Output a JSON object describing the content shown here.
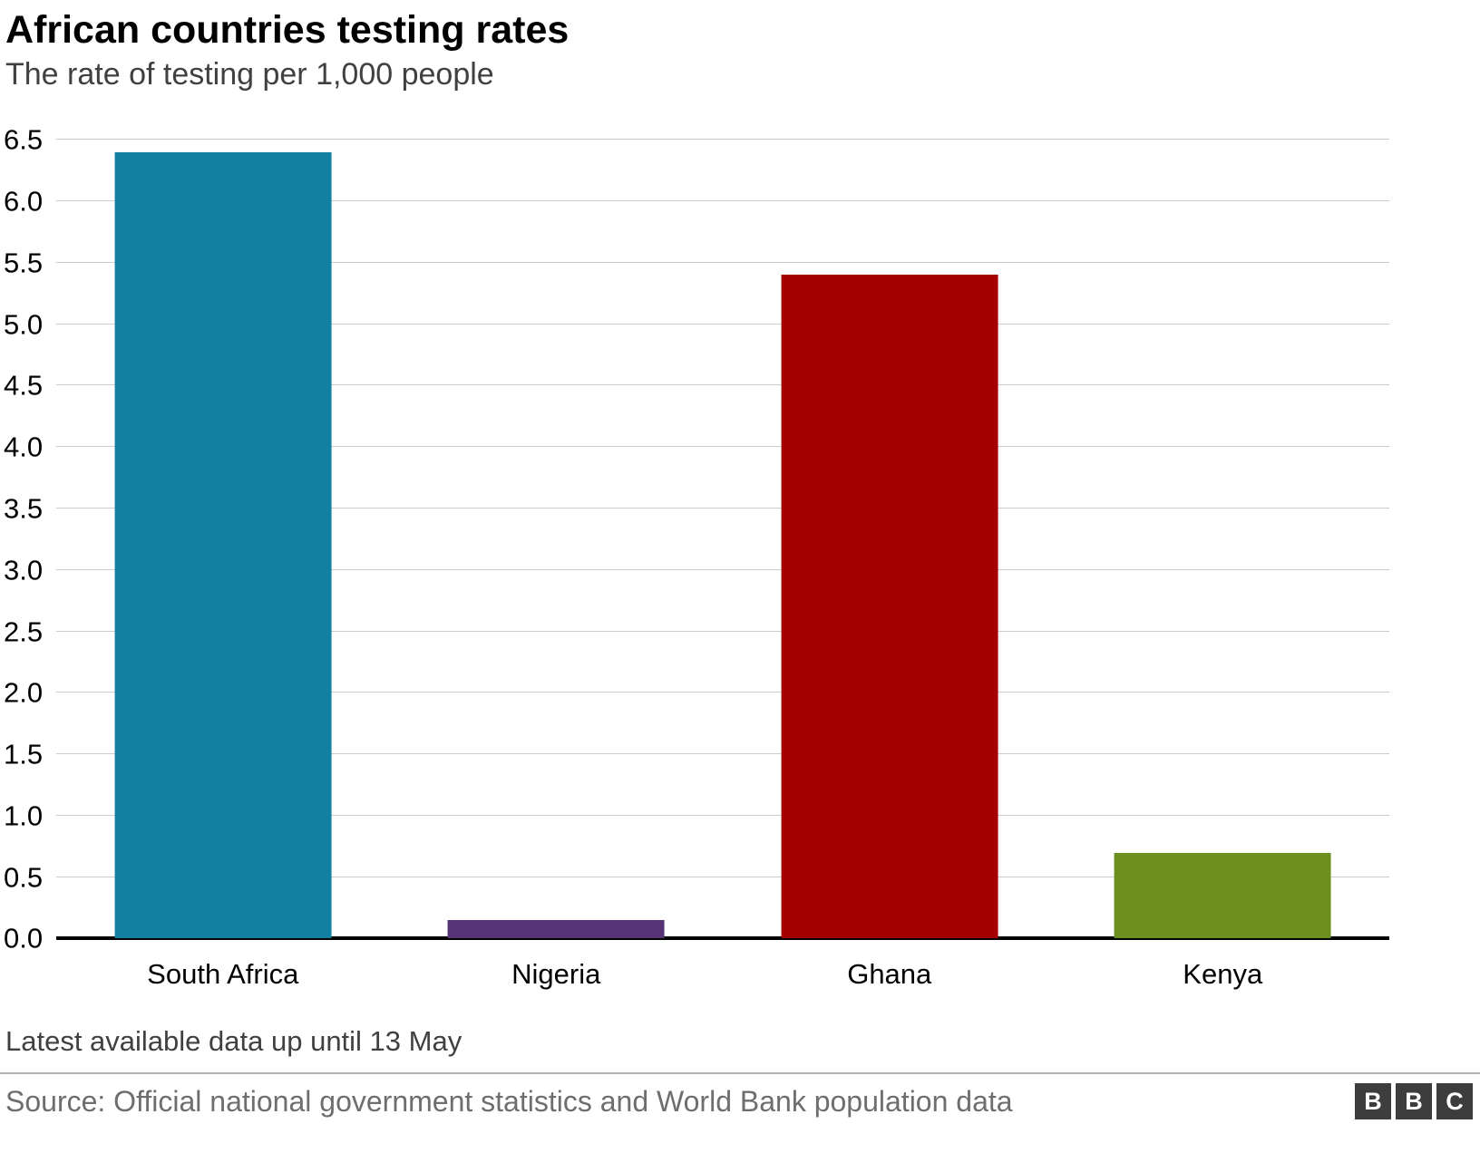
{
  "header": {
    "title": "African countries testing rates",
    "subtitle": "The rate of testing per 1,000 people"
  },
  "footnote": "Latest available data up until 13 May",
  "source": "Source: Official national government statistics and World Bank population data",
  "logo": {
    "letters": [
      "B",
      "B",
      "C"
    ]
  },
  "chart_data": {
    "type": "bar",
    "title": "African countries testing rates",
    "subtitle": "The rate of testing per 1,000 people",
    "categories": [
      "South Africa",
      "Nigeria",
      "Ghana",
      "Kenya"
    ],
    "values": [
      6.4,
      0.15,
      5.4,
      0.7
    ],
    "colors": [
      "#1380A1",
      "#563277",
      "#A40000",
      "#6E8F20"
    ],
    "xlabel": "",
    "ylabel": "",
    "ylim": [
      0,
      6.5
    ],
    "ytick_step": 0.5,
    "ytick_format_decimals": 1,
    "grid": true,
    "gridline_color": "#cccccc",
    "baseline_color": "#000000",
    "legend": "none"
  }
}
